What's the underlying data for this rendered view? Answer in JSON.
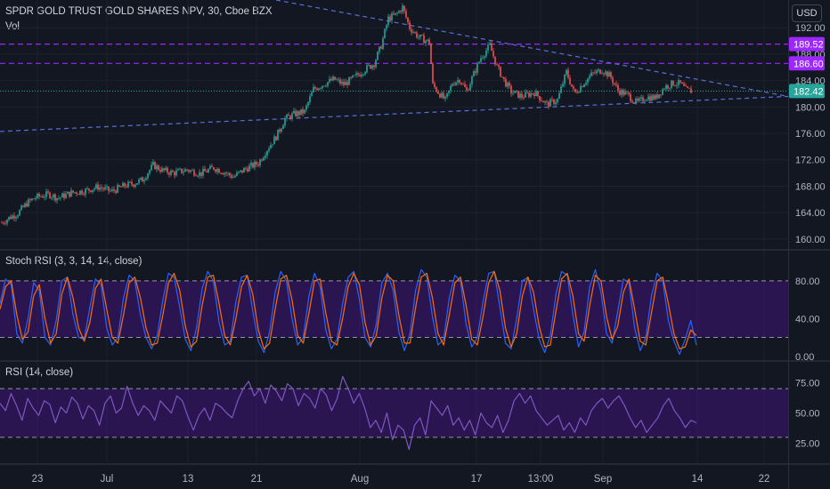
{
  "header": {
    "symbol_title": "SPDR GOLD TRUST GOLD SHARES NPV, 30, Cboe BZX",
    "vol_label": "Vol",
    "currency": "USD"
  },
  "colors": {
    "background": "#131722",
    "up_candle": "#26a69a",
    "down_candle": "#ef5350",
    "trendline": "#5b6fd8",
    "purple_level": "#9c27ff",
    "current_price": "#26a69a",
    "stoch_k": "#2962ff",
    "stoch_d": "#ff6d00",
    "rsi_line": "#7e57c2",
    "band_fill": "#4a148c"
  },
  "chart_data": [
    {
      "type": "candlestick",
      "title": "SPDR GOLD TRUST GOLD SHARES NPV, 30, Cboe BZX",
      "x_ticks": [
        "23",
        "Jul",
        "13",
        "21",
        "Aug",
        "17",
        "13:00",
        "Sep",
        "14",
        "22"
      ],
      "y_ticks": [
        160.0,
        164.0,
        168.0,
        172.0,
        176.0,
        180.0,
        184.0,
        188.0,
        192.0
      ],
      "y_range": [
        158.5,
        196.2
      ],
      "price_path": [
        [
          0,
          162.3
        ],
        [
          10,
          163.2
        ],
        [
          20,
          163.9
        ],
        [
          30,
          165.4
        ],
        [
          40,
          166.3
        ],
        [
          55,
          166.8
        ],
        [
          65,
          166.2
        ],
        [
          80,
          167.0
        ],
        [
          95,
          167.3
        ],
        [
          110,
          167.9
        ],
        [
          125,
          167.2
        ],
        [
          140,
          168.1
        ],
        [
          150,
          168.4
        ],
        [
          160,
          169.0
        ],
        [
          172,
          171.2
        ],
        [
          182,
          170.4
        ],
        [
          195,
          170.0
        ],
        [
          210,
          170.5
        ],
        [
          225,
          169.9
        ],
        [
          240,
          170.8
        ],
        [
          252,
          170.1
        ],
        [
          262,
          169.4
        ],
        [
          275,
          170.6
        ],
        [
          290,
          171.5
        ],
        [
          300,
          173.6
        ],
        [
          310,
          175.5
        ],
        [
          320,
          178.2
        ],
        [
          330,
          178.9
        ],
        [
          342,
          179.3
        ],
        [
          352,
          182.7
        ],
        [
          364,
          183.5
        ],
        [
          375,
          184.2
        ],
        [
          386,
          183.4
        ],
        [
          398,
          184.5
        ],
        [
          410,
          185.7
        ],
        [
          420,
          186.6
        ],
        [
          428,
          189.3
        ],
        [
          436,
          193.4
        ],
        [
          445,
          194.0
        ],
        [
          452,
          195.1
        ],
        [
          460,
          192.0
        ],
        [
          470,
          190.6
        ],
        [
          482,
          189.8
        ],
        [
          486,
          183.3
        ],
        [
          493,
          182.1
        ],
        [
          500,
          181.0
        ],
        [
          508,
          183.6
        ],
        [
          516,
          184.2
        ],
        [
          524,
          182.4
        ],
        [
          532,
          185.0
        ],
        [
          540,
          187.5
        ],
        [
          550,
          189.3
        ],
        [
          558,
          186.1
        ],
        [
          566,
          184.0
        ],
        [
          574,
          182.3
        ],
        [
          586,
          181.6
        ],
        [
          600,
          182.2
        ],
        [
          614,
          180.4
        ],
        [
          626,
          181.1
        ],
        [
          636,
          185.3
        ],
        [
          645,
          182.0
        ],
        [
          655,
          183.6
        ],
        [
          665,
          185.0
        ],
        [
          676,
          185.6
        ],
        [
          685,
          184.7
        ],
        [
          694,
          182.5
        ],
        [
          705,
          181.8
        ],
        [
          715,
          180.6
        ],
        [
          726,
          181.5
        ],
        [
          736,
          181.4
        ],
        [
          746,
          183.0
        ],
        [
          756,
          183.6
        ],
        [
          764,
          183.5
        ],
        [
          770,
          182.6
        ],
        [
          776,
          182.4
        ]
      ],
      "purple_levels": [
        {
          "value": 189.52,
          "label": "189.52"
        },
        {
          "value": 186.6,
          "label": "186.60"
        }
      ],
      "current_price": {
        "value": 182.42,
        "label": "182.42"
      },
      "trendlines": [
        {
          "start": [
            0,
            176.3
          ],
          "end": [
            885,
            181.6
          ]
        },
        {
          "start": [
            310,
            196.2
          ],
          "end": [
            885,
            181.6
          ]
        }
      ]
    },
    {
      "type": "line",
      "title": "Stoch RSI (3, 3, 14, 14, close)",
      "y_ticks": [
        0.0,
        40.0,
        80.0
      ],
      "y_range": [
        -4,
        112
      ],
      "band": [
        20,
        80
      ],
      "series": [
        {
          "values": [
            56,
            82,
            76,
            24,
            14,
            40,
            78,
            70,
            20,
            12,
            38,
            80,
            84,
            44,
            20,
            18,
            52,
            82,
            76,
            30,
            12,
            20,
            62,
            86,
            80,
            44,
            20,
            8,
            22,
            60,
            88,
            84,
            52,
            18,
            6,
            30,
            72,
            90,
            80,
            36,
            12,
            16,
            58,
            84,
            86,
            48,
            16,
            4,
            26,
            68,
            90,
            80,
            40,
            12,
            20,
            64,
            88,
            74,
            28,
            8,
            18,
            56,
            84,
            90,
            60,
            20,
            10,
            34,
            78,
            88,
            70,
            26,
            6,
            24,
            70,
            92,
            84,
            42,
            12,
            18,
            62,
            86,
            80,
            34,
            10,
            20,
            58,
            88,
            90,
            52,
            14,
            8,
            40,
            80,
            84,
            50,
            18,
            4,
            22,
            66,
            90,
            86,
            44,
            10,
            26,
            74,
            92,
            68,
            24,
            14,
            48,
            82,
            78,
            30,
            6,
            20,
            64,
            88,
            80,
            38,
            16,
            2,
            18,
            38,
            12
          ]
        },
        {
          "values": [
            50,
            74,
            80,
            44,
            18,
            26,
            64,
            76,
            40,
            14,
            24,
            66,
            84,
            62,
            30,
            16,
            36,
            72,
            82,
            50,
            20,
            14,
            44,
            78,
            84,
            62,
            30,
            12,
            14,
            44,
            78,
            88,
            70,
            32,
            10,
            16,
            54,
            84,
            86,
            56,
            22,
            12,
            40,
            74,
            86,
            66,
            28,
            8,
            14,
            50,
            82,
            86,
            60,
            22,
            14,
            46,
            80,
            82,
            46,
            16,
            12,
            40,
            74,
            88,
            76,
            36,
            12,
            22,
            62,
            86,
            80,
            44,
            14,
            14,
            52,
            84,
            88,
            62,
            24,
            12,
            44,
            78,
            84,
            54,
            18,
            12,
            42,
            78,
            90,
            70,
            30,
            10,
            24,
            64,
            84,
            68,
            32,
            10,
            12,
            48,
            82,
            88,
            64,
            24,
            16,
            54,
            86,
            80,
            42,
            18,
            32,
            68,
            82,
            50,
            16,
            12,
            46,
            80,
            84,
            56,
            24,
            8,
            10,
            28,
            22
          ]
        }
      ]
    },
    {
      "type": "line",
      "title": "RSI (14, close)",
      "y_ticks": [
        25.0,
        50.0,
        75.0
      ],
      "y_range": [
        8,
        92
      ],
      "band": [
        30,
        70
      ],
      "series": [
        {
          "values": [
            58,
            52,
            66,
            56,
            44,
            62,
            54,
            48,
            60,
            57,
            42,
            55,
            50,
            63,
            58,
            45,
            56,
            52,
            40,
            58,
            64,
            50,
            54,
            72,
            58,
            48,
            56,
            52,
            44,
            60,
            55,
            50,
            64,
            60,
            47,
            36,
            48,
            54,
            44,
            58,
            55,
            50,
            46,
            60,
            70,
            76,
            64,
            70,
            58,
            73,
            68,
            60,
            74,
            70,
            56,
            66,
            62,
            54,
            70,
            65,
            52,
            62,
            80,
            70,
            58,
            66,
            54,
            38,
            44,
            34,
            50,
            28,
            40,
            36,
            20,
            40,
            46,
            32,
            60,
            54,
            48,
            56,
            40,
            46,
            36,
            44,
            32,
            50,
            42,
            38,
            48,
            34,
            44,
            60,
            66,
            58,
            64,
            52,
            46,
            40,
            44,
            48,
            36,
            42,
            34,
            46,
            40,
            52,
            58,
            62,
            54,
            60,
            64,
            56,
            46,
            38,
            44,
            34,
            40,
            46,
            56,
            62,
            52,
            46,
            38,
            44,
            42
          ]
        }
      ]
    }
  ],
  "axes": {
    "main_ticks": [
      "192.00",
      "188.00",
      "184.00",
      "180.00",
      "176.00",
      "172.00",
      "168.00",
      "164.00",
      "160.00"
    ],
    "stoch_ticks": [
      "80.00",
      "40.00",
      "0.00"
    ],
    "rsi_ticks": [
      "75.00",
      "50.00",
      "25.00"
    ],
    "price_labels": {
      "level1": "189.52",
      "level2": "186.60",
      "current": "182.42"
    }
  }
}
